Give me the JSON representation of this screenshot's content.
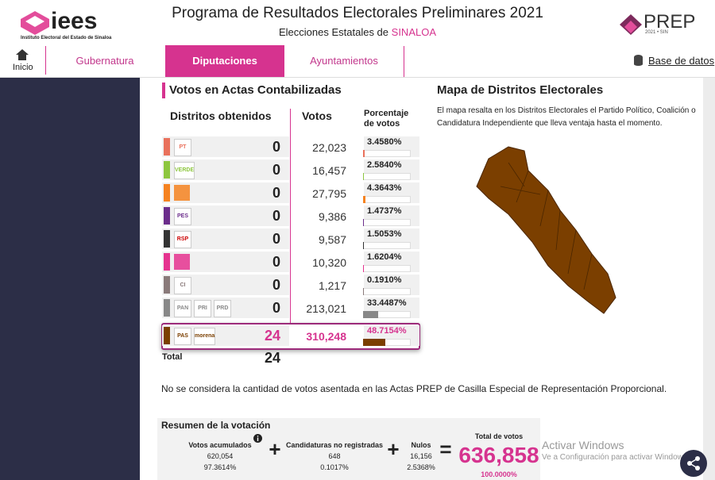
{
  "header": {
    "logo": "iees",
    "logo_subtitle": "Instituto Electoral del Estado de Sinaloa",
    "title": "Programa de Resultados Electorales Preliminares 2021",
    "subtitle": "Elecciones Estatales de",
    "state": "SINALOA",
    "prep": "PREP",
    "prep_subtitle": "2021 • SIN"
  },
  "nav": {
    "home": "Inicio",
    "tabs": [
      "Gubernatura",
      "Diputaciones",
      "Ayuntamientos"
    ],
    "active_tab": 1,
    "database": "Base de datos"
  },
  "results": {
    "heading": "Votos en Actas Contabilizadas",
    "columns": [
      "Distritos obtenidos",
      "Votos",
      "Porcentaje de votos"
    ],
    "rows": [
      {
        "logos": [
          "PT"
        ],
        "color": "#e9715c",
        "districts": "0",
        "votes": "22,023",
        "percent": "3.4580%"
      },
      {
        "logos": [
          "VERDE"
        ],
        "color": "#8dc63f",
        "districts": "0",
        "votes": "16,457",
        "percent": "2.5840%"
      },
      {
        "logos": [],
        "color": "#f58220",
        "districts": "0",
        "votes": "27,795",
        "percent": "4.3643%"
      },
      {
        "logos": [
          "PES"
        ],
        "color": "#6b2d8b",
        "districts": "0",
        "votes": "9,386",
        "percent": "1.4737%"
      },
      {
        "logos": [
          "RSP"
        ],
        "color": "#333333",
        "districts": "0",
        "votes": "9,587",
        "percent": "1.5053%"
      },
      {
        "logos": [],
        "color": "#e5338f",
        "districts": "0",
        "votes": "10,320",
        "percent": "1.6204%"
      },
      {
        "logos": [
          "CI"
        ],
        "color": "#8a7a7a",
        "districts": "0",
        "votes": "1,217",
        "percent": "0.1910%"
      },
      {
        "logos": [
          "PAN",
          "PRI",
          "PRD"
        ],
        "color": "#888888",
        "districts": "0",
        "votes": "213,021",
        "percent": "33.4487%"
      },
      {
        "logos": [
          "PAS",
          "morena"
        ],
        "color": "#7b3f00",
        "districts": "24",
        "votes": "310,248",
        "percent": "48.7154%",
        "highlight": true
      }
    ],
    "total_label": "Total",
    "total": "24"
  },
  "map": {
    "title": "Mapa de Distritos Electorales",
    "description": "El mapa resalta en los Distritos Electorales el Partido Político, Coalición o Candidatura Independiente que lleva ventaja hasta el momento.",
    "color": "#7b3f00"
  },
  "note": "No se considera la cantidad de votos asentada en las Actas PREP de Casilla Especial de Representación Proporcional.",
  "summary": {
    "title": "Resumen de la votación",
    "items": [
      {
        "label": "Votos acumulados",
        "value": "620,054",
        "percent": "97.3614%"
      },
      {
        "label": "Candidaturas no registradas",
        "value": "648",
        "percent": "0.1017%"
      },
      {
        "label": "Nulos",
        "value": "16,156",
        "percent": "2.5368%"
      }
    ],
    "operators": [
      "+",
      "+",
      "="
    ],
    "total": {
      "label": "Total de votos",
      "value": "636,858",
      "percent": "100.0000%"
    }
  },
  "watermark": {
    "title": "Activar Windows",
    "text": "Ve a Configuración para activar Windows."
  }
}
